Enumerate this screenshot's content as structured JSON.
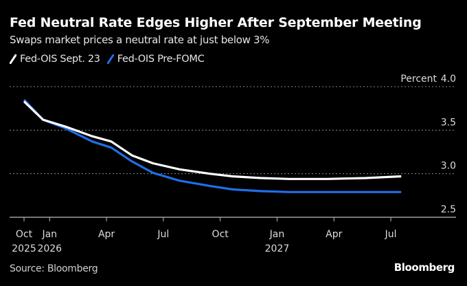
{
  "header": {
    "title": "Fed Neutral Rate Edges Higher After September Meeting",
    "subtitle": "Swaps market prices a neutral rate at just below 3%"
  },
  "footer": {
    "source": "Source: Bloomberg",
    "brand": "Bloomberg"
  },
  "colors": {
    "background": "#000000",
    "series_sept23": "#ffffff",
    "series_prefomc": "#1f6fe8",
    "gridline": "#8a8a8a",
    "axis": "#bdbdbd"
  },
  "chart_data": {
    "type": "line",
    "title": "Fed Neutral Rate Edges Higher After September Meeting",
    "subtitle": "Swaps market prices a neutral rate at just below 3%",
    "xlabel": "",
    "ylabel": "Percent",
    "y_unit_label": "Percent",
    "ylim": [
      2.5,
      4.0
    ],
    "yticks": [
      2.5,
      3.0,
      3.5,
      4.0
    ],
    "ytick_labels": [
      "2.5",
      "3.0",
      "3.5",
      "4.0"
    ],
    "grid": true,
    "legend_position": "top-left",
    "xlim_months": [
      0,
      11.5
    ],
    "xticks": [
      {
        "month": 0,
        "line1": "Oct",
        "line2": "2025"
      },
      {
        "month": 1.35,
        "line1": "Jan",
        "line2": "2026"
      },
      {
        "month": 4.35,
        "line1": "Apr",
        "line2": ""
      },
      {
        "month": 7.35,
        "line1": "Jul",
        "line2": ""
      },
      {
        "month": 10.35,
        "line1": "Oct",
        "line2": ""
      },
      {
        "month": 13.35,
        "line1": "Jan",
        "line2": "2027"
      },
      {
        "month": 16.35,
        "line1": "Apr",
        "line2": ""
      },
      {
        "month": 19.35,
        "line1": "Jul",
        "line2": ""
      }
    ],
    "series": [
      {
        "name": "Fed-OIS Sept. 23",
        "color": "#ffffff",
        "points": [
          [
            0,
            3.83
          ],
          [
            1.0,
            3.62
          ],
          [
            2.2,
            3.54
          ],
          [
            3.6,
            3.43
          ],
          [
            4.6,
            3.37
          ],
          [
            5.7,
            3.21
          ],
          [
            6.8,
            3.12
          ],
          [
            8.2,
            3.05
          ],
          [
            9.8,
            3.0
          ],
          [
            11.0,
            2.97
          ],
          [
            12.5,
            2.95
          ],
          [
            14.0,
            2.94
          ],
          [
            16.0,
            2.94
          ],
          [
            18.0,
            2.95
          ],
          [
            19.9,
            2.97
          ]
        ]
      },
      {
        "name": "Fed-OIS Pre-FOMC",
        "color": "#1f6fe8",
        "points": [
          [
            0,
            3.85
          ],
          [
            1.0,
            3.62
          ],
          [
            2.2,
            3.52
          ],
          [
            3.6,
            3.37
          ],
          [
            4.6,
            3.3
          ],
          [
            5.7,
            3.14
          ],
          [
            6.8,
            3.01
          ],
          [
            8.2,
            2.92
          ],
          [
            9.8,
            2.86
          ],
          [
            11.0,
            2.82
          ],
          [
            12.5,
            2.8
          ],
          [
            14.0,
            2.79
          ],
          [
            16.0,
            2.79
          ],
          [
            18.0,
            2.79
          ],
          [
            19.9,
            2.79
          ]
        ]
      }
    ]
  }
}
